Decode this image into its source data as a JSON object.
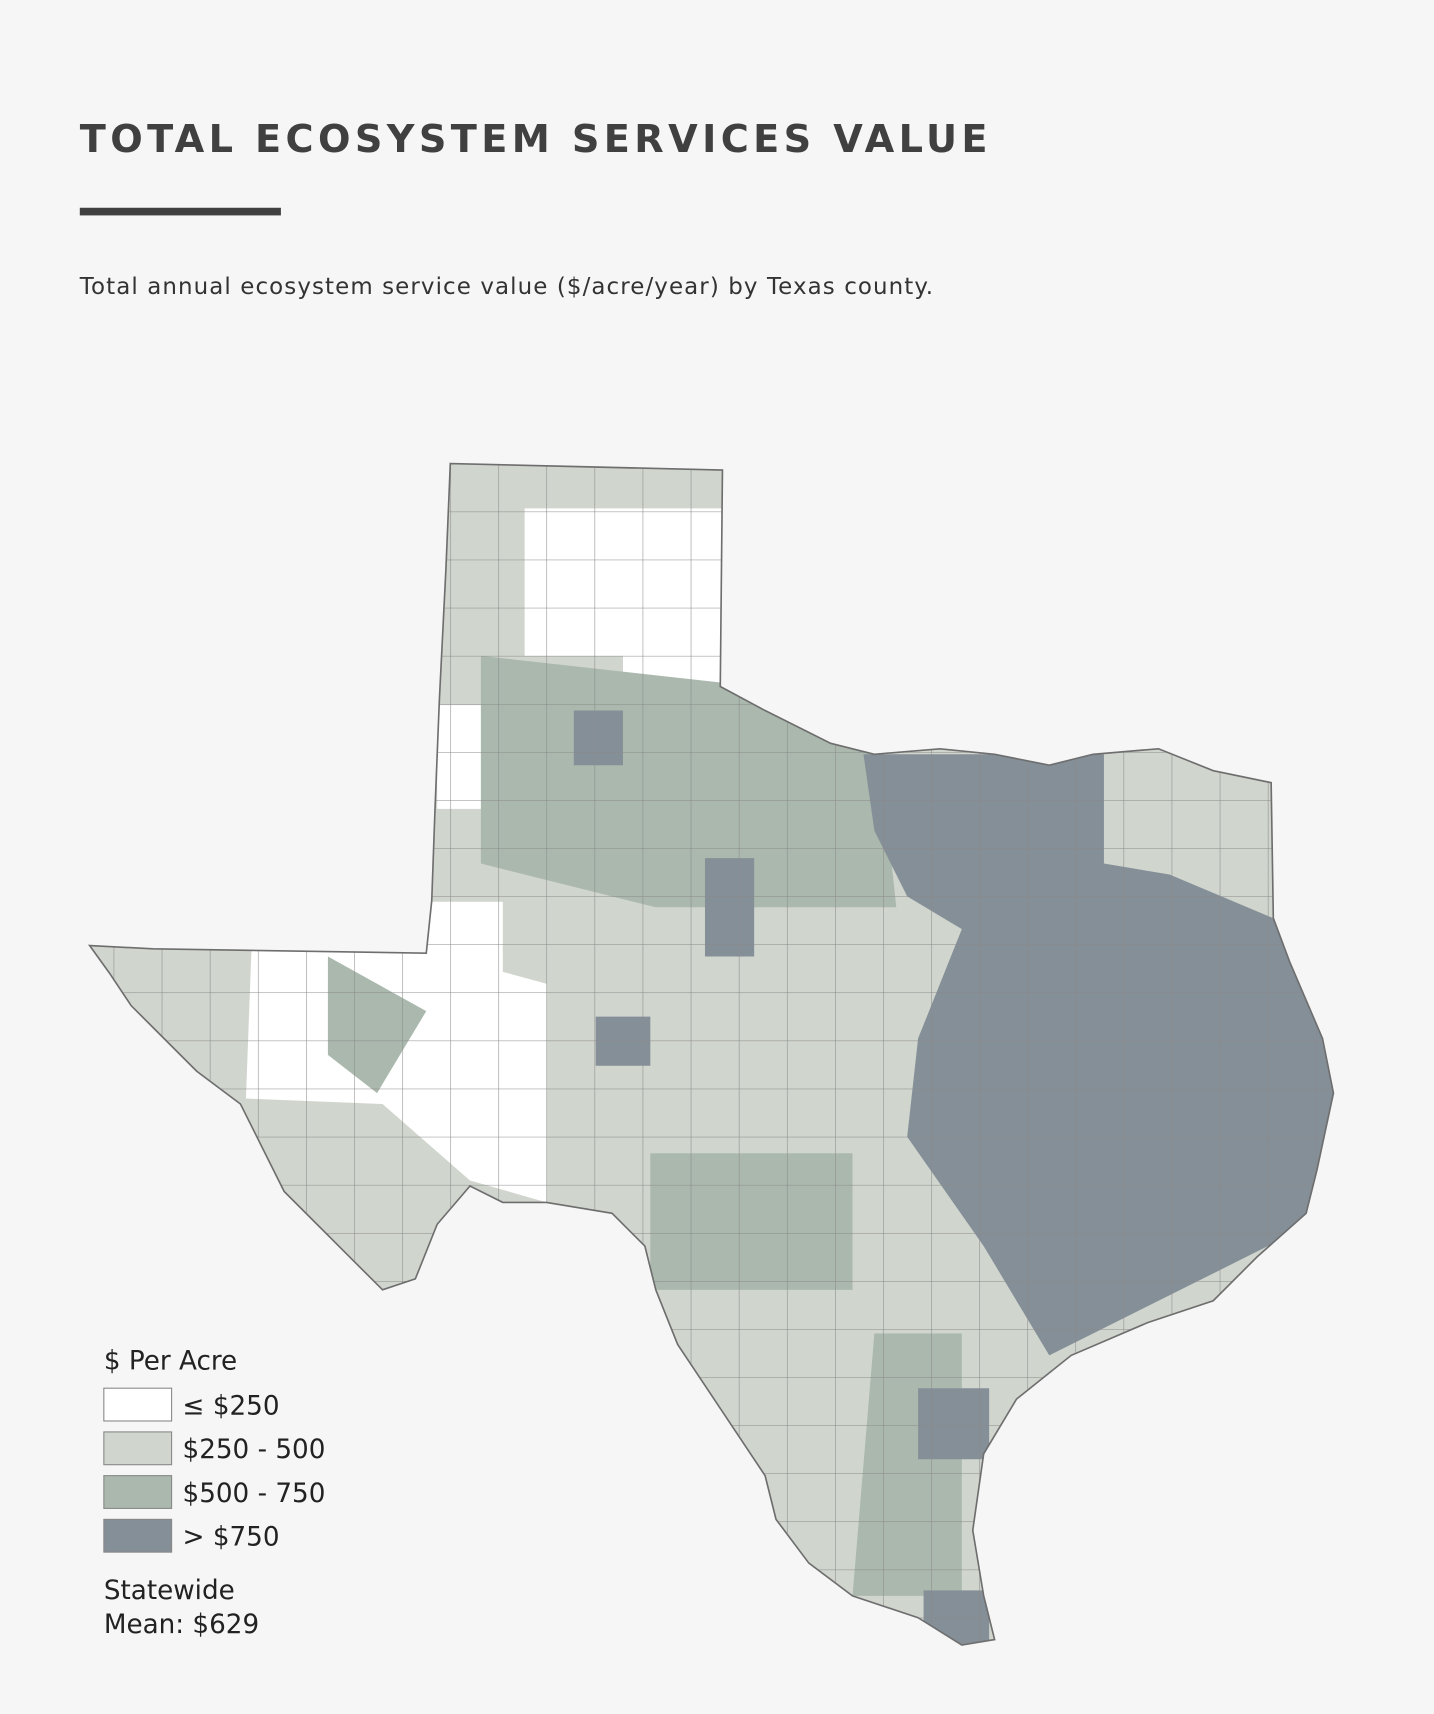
{
  "header": {
    "title": "TOTAL ECOSYSTEM SERVICES VALUE",
    "subtitle": "Total annual ecosystem service value ($/acre/year) by Texas county."
  },
  "legend": {
    "title": "$ Per Acre",
    "items": [
      {
        "label": "≤ $250",
        "color": "#ffffff"
      },
      {
        "label": "$250 - 500",
        "color": "#d0d5cd"
      },
      {
        "label": "$500 - 750",
        "color": "#aab8ad"
      },
      {
        "label": "> $750",
        "color": "#858f98"
      }
    ],
    "note": [
      "Statewide",
      "Mean: $629"
    ]
  }
}
